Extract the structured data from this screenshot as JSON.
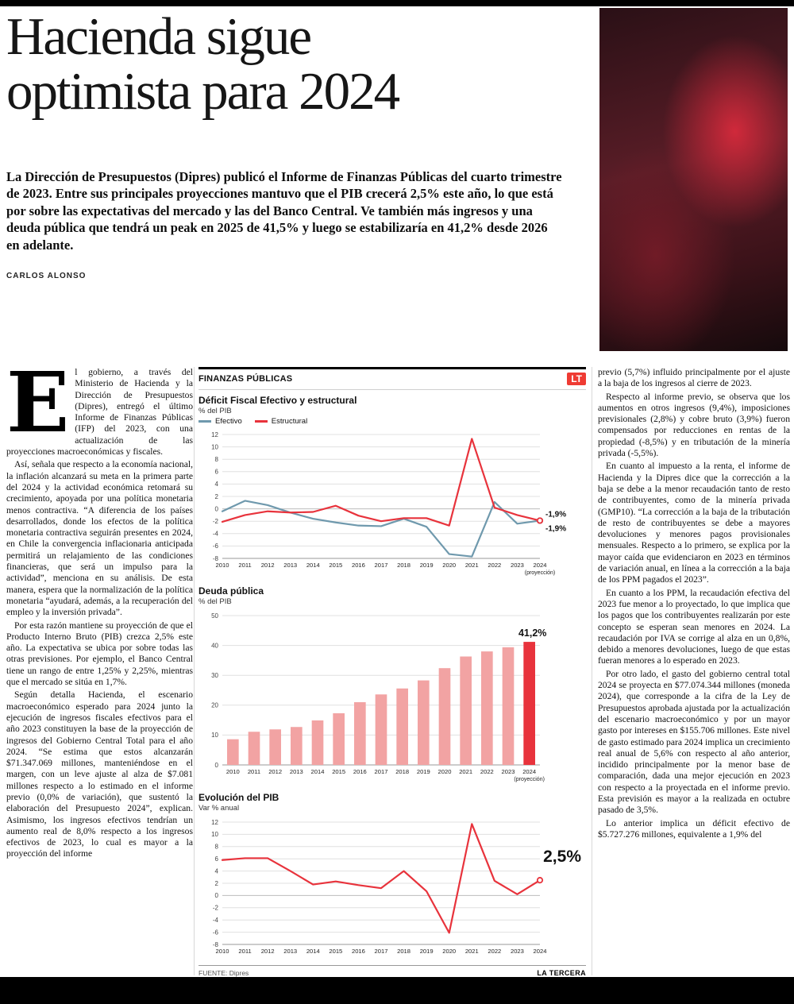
{
  "page": {
    "headline_lines": [
      "Hacienda sigue",
      "optimista para 2024"
    ],
    "lede": "La Dirección de Presupuestos (Dipres) publicó el Informe de Finanzas Públicas del cuarto trimestre de 2023. Entre sus principales proyecciones mantuvo que el PIB crecerá 2,5% este año, lo que está por sobre las expectativas del mercado y las del Banco Central. Ve también más ingresos y una deuda pública que tendrá un peak en 2025 de 41,5% y luego se estabilizaría en 41,2% desde 2026 en adelante.",
    "byline": "CARLOS ALONSO"
  },
  "article": {
    "left_column": {
      "dropcap": "E",
      "paragraphs": [
        "l gobierno, a través del Ministerio de Hacienda y la Dirección de Presupuestos (Dipres), entregó el último Informe de Finanzas Públicas (IFP) del 2023, con una actualización de las proyecciones macroeconómicas y fiscales.",
        "Así, señala que respecto a la economía nacional, la inflación alcanzará su meta en la primera parte del 2024 y la actividad económica retomará su crecimiento, apoyada por una política monetaria menos contractiva. “A diferencia de los países desarrollados, donde los efectos de la política monetaria contractiva seguirán presentes en 2024, en Chile la convergencia inflacionaria anticipada permitirá un relajamiento de las condiciones financieras, que será un impulso para la actividad”, menciona en su análisis. De esta manera, espera que la normalización de la política monetaria “ayudará, además, a la recuperación del empleo y la inversión privada”.",
        "Por esta razón mantiene su proyección de que el Producto Interno Bruto (PIB) crezca 2,5% este año. La expectativa se ubica por sobre todas las otras previsiones. Por ejemplo, el Banco Central tiene un rango de entre 1,25% y 2,25%, mientras que el mercado se sitúa en 1,7%.",
        "Según detalla Hacienda, el escenario macroeconómico esperado para 2024 junto la ejecución de ingresos fiscales efectivos para el año 2023 constituyen la base de la proyección de ingresos del Gobierno Central Total para el año 2024. “Se estima que estos alcanzarán $71.347.069 millones, manteniéndose en el margen, con un leve ajuste al alza de $7.081 millones respecto a lo estimado en el informe previo (0,0% de variación), que sustentó la elaboración del Presupuesto 2024”, explican. Asimismo, los ingresos efectivos tendrían un aumento real de 8,0% respecto a los ingresos efectivos de 2023, lo cual es mayor a la proyección del informe"
      ]
    },
    "right_column": {
      "paragraphs": [
        "previo (5,7%) influido principalmente por el ajuste a la baja de los ingresos al cierre de 2023.",
        "Respecto al informe previo, se observa que los aumentos en otros ingresos (9,4%), imposiciones previsionales (2,8%) y cobre bruto (3,9%) fueron compensados por reducciones en rentas de la propiedad (-8,5%) y en tributación de la minería privada (-5,5%).",
        "En cuanto al impuesto a la renta, el informe de Hacienda y la Dipres dice que la corrección a la baja se debe a la menor recaudación tanto de resto de contribuyentes, como de la minería privada (GMP10). “La corrección a la baja de la tributación de resto de contribuyentes se debe a mayores devoluciones y menores pagos provisionales mensuales. Respecto a lo primero, se explica por la mayor caída que evidenciaron en 2023 en términos de variación anual, en línea a la corrección a la baja de los PPM pagados el 2023”.",
        "En cuanto a los PPM, la recaudación efectiva del 2023 fue menor a lo proyectado, lo que implica que los pagos que los contribuyentes realizarán por este concepto se esperan sean menores en 2024. La recaudación por IVA se corrige al alza en un 0,8%, debido a menores devoluciones, luego de que estas fueran menores a lo esperado en 2023.",
        "Por otro lado, el gasto del gobierno central total 2024 se proyecta en $77.074.344 millones (moneda 2024), que corresponde a la cifra de la Ley de Presupuestos aprobada ajustada por la actualización del escenario macroeconómico y por un mayor gasto por intereses en $155.706 millones. Este nivel de gasto estimado para 2024 implica un crecimiento real anual de 5,6% con respecto al año anterior, incidido principalmente por la menor base de comparación, dada una mejor ejecución en 2023 con respecto a la proyectada en el informe previo. Esta previsión es mayor a la realizada en octubre pasado de 3,5%.",
        "Lo anterior implica un déficit efectivo de $5.727.276 millones, equivalente a 1,9% del"
      ]
    }
  },
  "charts_panel": {
    "kicker": "FINANZAS PÚBLICAS",
    "logo": "LT",
    "source_label": "FUENTE:",
    "source": "Dipres",
    "credit": "LA TERCERA"
  },
  "chart_data": [
    {
      "type": "line",
      "title": "Déficit Fiscal Efectivo y estructural",
      "subtitle": "% del PIB",
      "categories": [
        "2010",
        "2011",
        "2012",
        "2013",
        "2014",
        "2015",
        "2016",
        "2017",
        "2018",
        "2019",
        "2020",
        "2021",
        "2022",
        "2023",
        "2024"
      ],
      "x_note": "(proyección)",
      "ylim": [
        -8,
        12
      ],
      "yticks": [
        12,
        10,
        8,
        6,
        4,
        2,
        0,
        -2,
        -4,
        -6,
        -8
      ],
      "legend_position": "top",
      "grid": true,
      "series": [
        {
          "name": "Efectivo",
          "color": "#6f99ad",
          "end_label": "-1,9%",
          "values": [
            -0.4,
            1.3,
            0.6,
            -0.6,
            -1.6,
            -2.2,
            -2.7,
            -2.8,
            -1.6,
            -2.9,
            -7.3,
            -7.7,
            1.1,
            -2.4,
            -1.9
          ]
        },
        {
          "name": "Estructural",
          "color": "#e8333c",
          "end_label": "-1,9%",
          "values": [
            -2.1,
            -1.0,
            -0.4,
            -0.6,
            -0.5,
            0.5,
            -1.1,
            -2.0,
            -1.5,
            -1.5,
            -2.7,
            11.3,
            0.2,
            -1.0,
            -1.9
          ]
        }
      ]
    },
    {
      "type": "bar",
      "title": "Deuda pública",
      "subtitle": "% del PIB",
      "categories": [
        "2010",
        "2011",
        "2012",
        "2013",
        "2014",
        "2015",
        "2016",
        "2017",
        "2018",
        "2019",
        "2020",
        "2021",
        "2022",
        "2023",
        "2024"
      ],
      "x_note": "(proyección)",
      "ylim": [
        0,
        50
      ],
      "yticks": [
        50,
        40,
        30,
        20,
        10,
        0
      ],
      "grid": true,
      "values": [
        8.6,
        11.1,
        11.9,
        12.7,
        14.9,
        17.3,
        21.0,
        23.6,
        25.6,
        28.3,
        32.4,
        36.3,
        38.0,
        39.4,
        41.2
      ],
      "highlight_index": 14,
      "end_label": "41,2%"
    },
    {
      "type": "line",
      "title": "Evolución del PIB",
      "subtitle": "Var % anual",
      "categories": [
        "2010",
        "2011",
        "2012",
        "2013",
        "2014",
        "2015",
        "2016",
        "2017",
        "2018",
        "2019",
        "2020",
        "2021",
        "2022",
        "2023",
        "2024"
      ],
      "ylim": [
        -8,
        12
      ],
      "yticks": [
        12,
        10,
        8,
        6,
        4,
        2,
        0,
        -2,
        -4,
        -6,
        -8
      ],
      "grid": true,
      "series": [
        {
          "name": "PIB",
          "color": "#e8333c",
          "end_label": "2,5%",
          "big_label": true,
          "values": [
            5.8,
            6.1,
            6.1,
            4.0,
            1.8,
            2.3,
            1.7,
            1.2,
            4.0,
            0.7,
            -6.1,
            11.7,
            2.4,
            0.2,
            2.5
          ]
        }
      ]
    }
  ],
  "colors": {
    "accent": "#e8333c",
    "logo_red": "#ef3b33",
    "line_blue": "#6f99ad",
    "bar_pink": "#f2a3a3",
    "grid": "#e0e0e0"
  }
}
